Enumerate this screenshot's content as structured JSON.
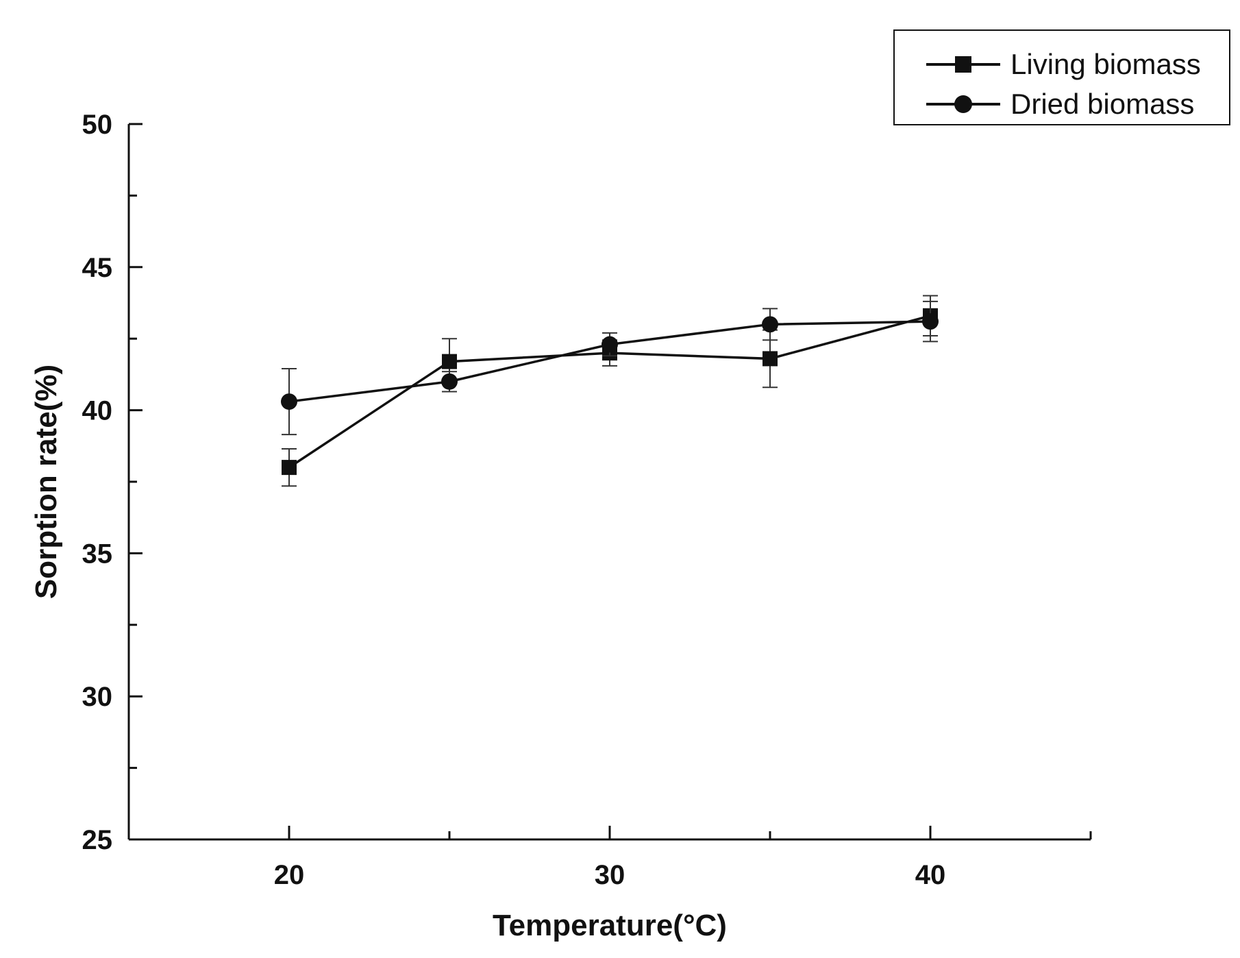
{
  "chart_data": {
    "type": "line",
    "title": "",
    "xlabel": "Temperature(°C)",
    "ylabel": "Sorption rate(%)",
    "xlim": [
      15,
      45
    ],
    "ylim": [
      25,
      50
    ],
    "x_ticks": [
      20,
      30,
      40
    ],
    "y_ticks": [
      25,
      30,
      35,
      40,
      45,
      50
    ],
    "grid": false,
    "legend_position": "top-right",
    "x": [
      20,
      25,
      30,
      35,
      40
    ],
    "series": [
      {
        "name": "Living biomass",
        "marker": "square",
        "values": [
          38.0,
          41.7,
          42.0,
          41.8,
          43.3
        ],
        "errors": [
          0.65,
          0.8,
          0.45,
          1.0,
          0.7
        ]
      },
      {
        "name": "Dried biomass",
        "marker": "circle",
        "values": [
          40.3,
          41.0,
          42.3,
          43.0,
          43.1
        ],
        "errors": [
          1.15,
          0.35,
          0.4,
          0.55,
          0.7
        ]
      }
    ]
  }
}
